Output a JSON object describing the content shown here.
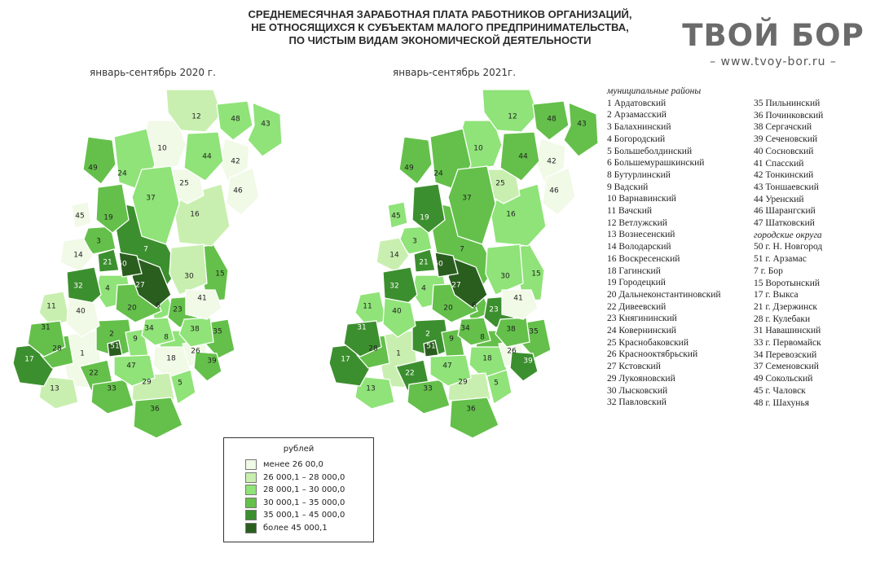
{
  "title_lines": [
    "СРЕДНЕМЕСЯЧНАЯ ЗАРАБОТНАЯ ПЛАТА РАБОТНИКОВ ОРГАНИЗАЦИЙ,",
    "НЕ ОТНОСЯЩИХСЯ К СУБЪЕКТАМ МАЛОГО ПРЕДПРИНИМАТЕЛЬСТВА,",
    "ПО ЧИСТЫМ ВИДАМ ЭКОНОМИЧЕСКОЙ ДЕЯТЕЛЬНОСТИ"
  ],
  "logo": {
    "main": "ТВОЙ БОР",
    "sub": "– www.tvoy-bor.ru –"
  },
  "maps": [
    {
      "subtitle": "январь-сентябрь 2020 г.",
      "classes": {
        "1": 1,
        "2": 4,
        "3": 4,
        "4": 3,
        "5": 3,
        "6": 3,
        "7": 5,
        "8": 3,
        "9": 3,
        "10": 1,
        "11": 2,
        "12": 2,
        "13": 2,
        "14": 1,
        "15": 4,
        "16": 2,
        "17": 5,
        "18": 1,
        "19": 4,
        "20": 4,
        "21": 5,
        "22": 4,
        "23": 4,
        "24": 3,
        "25": 1,
        "26": 1,
        "27": 6,
        "28": 4,
        "29": 2,
        "30": 2,
        "31": 4,
        "32": 5,
        "33": 4,
        "34": 3,
        "35": 4,
        "36": 4,
        "37": 3,
        "38": 3,
        "39": 4,
        "40": 1,
        "41": 1,
        "42": 1,
        "43": 3,
        "44": 3,
        "45": 1,
        "46": 1,
        "47": 3,
        "48": 3,
        "49": 4,
        "50": 6,
        "51": 6
      }
    },
    {
      "subtitle": "январь-сентябрь 2021г.",
      "classes": {
        "1": 2,
        "2": 5,
        "3": 3,
        "4": 3,
        "5": 3,
        "6": 4,
        "7": 4,
        "8": 4,
        "9": 4,
        "10": 3,
        "11": 3,
        "12": 3,
        "13": 3,
        "14": 2,
        "15": 3,
        "16": 3,
        "17": 5,
        "18": 3,
        "19": 5,
        "20": 4,
        "21": 5,
        "22": 5,
        "23": 5,
        "24": 4,
        "25": 2,
        "26": 1,
        "27": 6,
        "28": 4,
        "29": 2,
        "30": 3,
        "31": 5,
        "32": 5,
        "33": 4,
        "34": 4,
        "35": 4,
        "36": 4,
        "37": 4,
        "38": 4,
        "39": 5,
        "40": 3,
        "41": 1,
        "42": 1,
        "43": 4,
        "44": 4,
        "45": 3,
        "46": 1,
        "47": 3,
        "48": 4,
        "49": 4,
        "50": 6,
        "51": 6
      }
    }
  ],
  "legend": {
    "title": "рублей",
    "items": [
      {
        "label": "менее 26 00,0",
        "color": "#f1f9e7"
      },
      {
        "label": "26 000,1 – 28 000,0",
        "color": "#c9efb0"
      },
      {
        "label": "28 000,1 – 30 000,0",
        "color": "#8fe378"
      },
      {
        "label": "30 000,1 – 35 000,0",
        "color": "#64c04a"
      },
      {
        "label": "35 000,1 – 45 000,0",
        "color": "#3c8f2e"
      },
      {
        "label": "более 45 000,1",
        "color": "#2a5e1e"
      }
    ]
  },
  "districts_header": "муниципальные районы",
  "districts_col1": [
    "1 Ардатовский",
    "2 Арзамасский",
    "3 Балахнинский",
    "4 Богородский",
    "5 Большеболдинский",
    "6 Большемурашкинский",
    "8 Бутурлинский",
    "9 Вадский",
    "10 Варнавинский",
    "11 Вачский",
    "12 Ветлужский",
    "13 Вознесенский",
    "14 Володарский",
    "16 Воскресенский",
    "18 Гагинский",
    "19 Городецкий",
    "20 Дальнеконстантиновский",
    "22 Дивеевский",
    "23 Княгининский",
    "24 Ковернинский",
    "25 Краснобаковский",
    "26 Краснооктябрьский",
    "27 Кстовский",
    "29 Лукояновский",
    "30 Лысковский",
    "32 Павловский"
  ],
  "districts_col2": [
    "35 Пильнинский",
    "36 Починковский",
    "38 Сергачский",
    "39 Сеченовский",
    "40 Сосновский",
    "41 Спасский",
    "42 Тонкинский",
    "43 Тоншаевский",
    "44 Уренский",
    "46 Шарангский",
    "47 Шатковский"
  ],
  "cities_header": "городские округа",
  "cities": [
    "50 г. Н. Новгород",
    "51 г. Арзамас",
    "7 г. Бор",
    "15 Воротынский",
    "17 г. Выкса",
    "21 г. Дзержинск",
    "28 г. Кулебаки",
    "31 Навашинский",
    "33 г. Первомайск",
    "34 Перевозский",
    "37 Семеновский",
    "49 Сокольский",
    "45 г. Чаловск",
    "48 г. Шахунья"
  ]
}
